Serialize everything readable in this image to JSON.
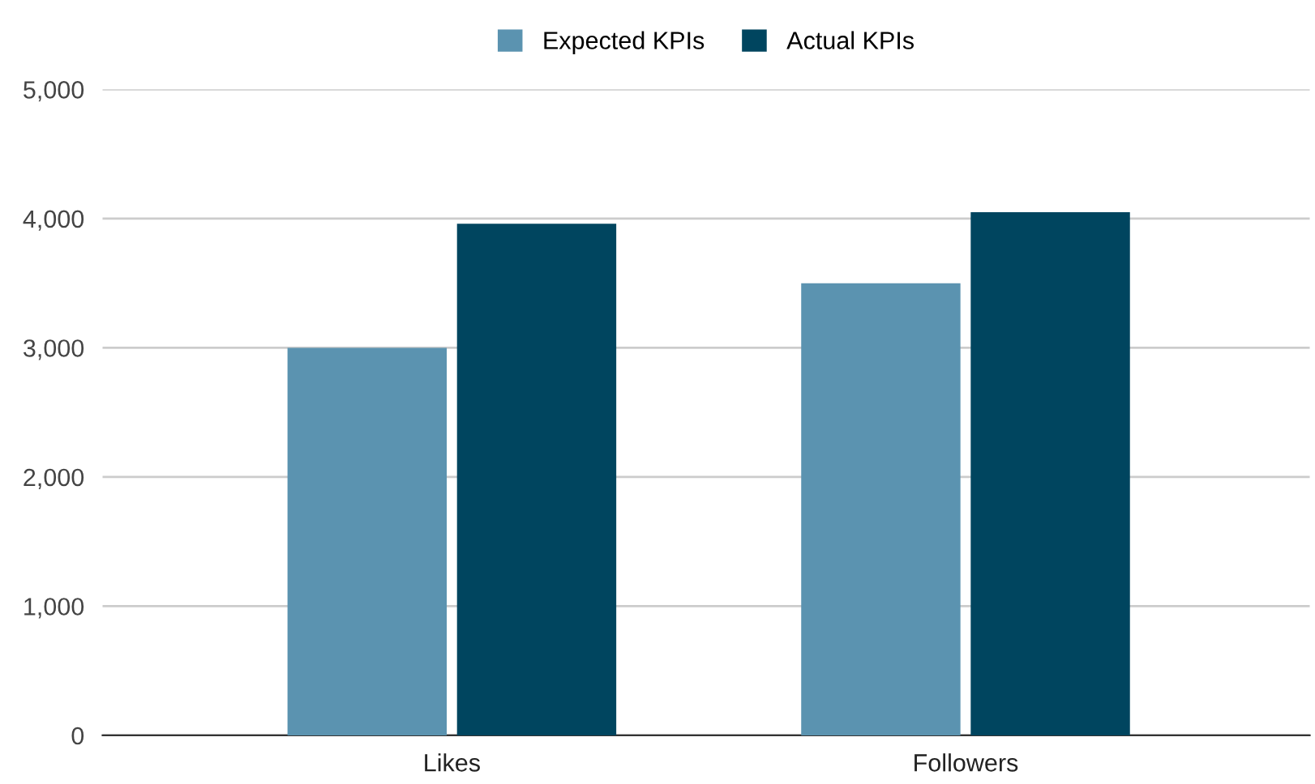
{
  "chart_data": {
    "type": "bar",
    "categories": [
      "Likes",
      "Followers"
    ],
    "series": [
      {
        "name": "Expected KPIs",
        "color": "#5b93b0",
        "values": [
          3000,
          3500
        ]
      },
      {
        "name": "Actual KPIs",
        "color": "#00455f",
        "values": [
          3960,
          4050
        ]
      }
    ],
    "ylim": [
      0,
      5000
    ],
    "yticks": [
      {
        "value": 0,
        "label": "0"
      },
      {
        "value": 1000,
        "label": "1,000"
      },
      {
        "value": 2000,
        "label": "2,000"
      },
      {
        "value": 3000,
        "label": "3,000"
      },
      {
        "value": 4000,
        "label": "4,000"
      },
      {
        "value": 5000,
        "label": "5,000"
      }
    ],
    "grid": "y",
    "legend": "top"
  }
}
